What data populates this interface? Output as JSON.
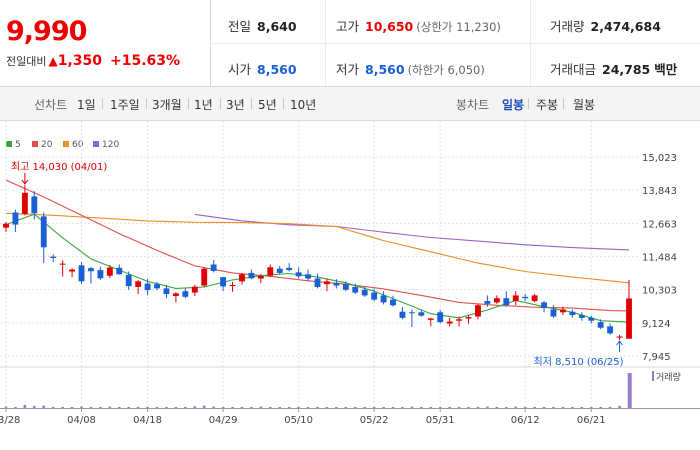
{
  "quote": {
    "price": "9,990",
    "change_label": "전일대비",
    "change_arrow": "▲",
    "change_amount": "1,350",
    "change_pct": "+15.63%",
    "prev_label": "전일",
    "prev_value": "8,640",
    "high_label": "고가",
    "high_value": "10,650",
    "high_limit": "(상한가 11,230)",
    "volume_label": "거래량",
    "volume_value": "2,474,684",
    "open_label": "시가",
    "open_value": "8,560",
    "low_label": "저가",
    "low_value": "8,560",
    "low_limit": "(하한가 6,050)",
    "amount_label": "거래대금",
    "amount_value": "24,785",
    "amount_unit": "백만"
  },
  "toolbar": {
    "line_label": "선차트",
    "periods": [
      "1일",
      "1주일",
      "3개월",
      "1년",
      "3년",
      "5년",
      "10년"
    ],
    "candle_label": "봉차트",
    "candle_periods": [
      "일봉",
      "주봉",
      "월봉"
    ],
    "active_candle": "일봉"
  },
  "colors": {
    "up": "#e00000",
    "down": "#1a5fd6",
    "ma5": "#39a83b",
    "ma20": "#e15050",
    "ma60": "#f08c28",
    "ma120": "#9a60c8",
    "volume": "#9c7ec6"
  },
  "chart_data": {
    "type": "candlestick",
    "x_ticks": [
      "03/28",
      "04/08",
      "04/18",
      "04/29",
      "05/10",
      "05/22",
      "05/31",
      "06/12",
      "06/21"
    ],
    "y_ticks": [
      "15,023",
      "13,843",
      "12,663",
      "11,484",
      "10,303",
      "9,124",
      "7,945"
    ],
    "ylim": [
      7945,
      15023
    ],
    "legend": [
      "5",
      "20",
      "60",
      "120"
    ],
    "volume_legend": "거래량",
    "max_annotation": "최고 14,030 (04/01)",
    "min_annotation": "최저 8,510 (06/25)",
    "ohlc": [
      [
        12510,
        12710,
        12350,
        12650
      ],
      [
        13050,
        13150,
        12360,
        12620
      ],
      [
        13000,
        14030,
        12950,
        13750
      ],
      [
        13620,
        13810,
        12800,
        13020
      ],
      [
        12910,
        13050,
        11250,
        11810
      ],
      [
        11480,
        11560,
        11280,
        11430
      ],
      [
        11200,
        11340,
        10770,
        11230
      ],
      [
        10950,
        11070,
        10750,
        11020
      ],
      [
        11170,
        11280,
        10500,
        10600
      ],
      [
        11070,
        11110,
        10520,
        10960
      ],
      [
        11000,
        11120,
        10650,
        10710
      ],
      [
        10800,
        11180,
        10720,
        11090
      ],
      [
        11080,
        11200,
        10840,
        10850
      ],
      [
        10830,
        10950,
        10300,
        10430
      ],
      [
        10400,
        10650,
        10150,
        10600
      ],
      [
        10520,
        10680,
        10100,
        10290
      ],
      [
        10500,
        10580,
        10280,
        10350
      ],
      [
        10350,
        10470,
        10000,
        10150
      ],
      [
        10080,
        10220,
        9850,
        10170
      ],
      [
        10250,
        10350,
        10000,
        10050
      ],
      [
        10200,
        10480,
        10080,
        10410
      ],
      [
        10450,
        11100,
        10400,
        11050
      ],
      [
        11200,
        11360,
        10920,
        10970
      ],
      [
        10750,
        10760,
        10250,
        10420
      ],
      [
        10440,
        10580,
        10230,
        10470
      ],
      [
        10600,
        10900,
        10480,
        10850
      ],
      [
        10900,
        11020,
        10680,
        10710
      ],
      [
        10700,
        10860,
        10540,
        10790
      ],
      [
        10800,
        11200,
        10750,
        11100
      ],
      [
        11050,
        11150,
        10850,
        10900
      ],
      [
        11080,
        11250,
        10950,
        11000
      ],
      [
        10920,
        11100,
        10700,
        10780
      ],
      [
        10850,
        11020,
        10600,
        10700
      ],
      [
        10700,
        10880,
        10350,
        10400
      ],
      [
        10500,
        10700,
        10250,
        10600
      ],
      [
        10550,
        10680,
        10350,
        10450
      ],
      [
        10500,
        10600,
        10250,
        10300
      ],
      [
        10400,
        10520,
        10150,
        10200
      ],
      [
        10300,
        10420,
        10050,
        10100
      ],
      [
        10200,
        10340,
        9900,
        9950
      ],
      [
        10100,
        10250,
        9780,
        9850
      ],
      [
        9950,
        10080,
        9700,
        9750
      ],
      [
        9520,
        9680,
        9250,
        9300
      ],
      [
        9500,
        9600,
        8980,
        9480
      ],
      [
        9500,
        9600,
        9340,
        9380
      ],
      [
        9230,
        9300,
        9000,
        9280
      ],
      [
        9500,
        9580,
        9100,
        9150
      ],
      [
        9100,
        9300,
        9000,
        9170
      ],
      [
        9200,
        9350,
        9000,
        9250
      ],
      [
        9280,
        9400,
        9100,
        9330
      ],
      [
        9350,
        9800,
        9250,
        9750
      ],
      [
        9900,
        10100,
        9700,
        9800
      ],
      [
        9850,
        10100,
        9800,
        10000
      ],
      [
        10000,
        10250,
        9700,
        9750
      ],
      [
        9900,
        10250,
        9750,
        10100
      ],
      [
        10050,
        10150,
        9900,
        10000
      ],
      [
        9900,
        10150,
        9850,
        10100
      ],
      [
        9850,
        9900,
        9500,
        9650
      ],
      [
        9600,
        9750,
        9300,
        9350
      ],
      [
        9500,
        9700,
        9400,
        9600
      ],
      [
        9520,
        9600,
        9300,
        9400
      ],
      [
        9400,
        9500,
        9200,
        9300
      ],
      [
        9300,
        9380,
        9100,
        9200
      ],
      [
        9150,
        9250,
        8900,
        8950
      ],
      [
        9000,
        9100,
        8700,
        8750
      ],
      [
        8600,
        8700,
        8510,
        8640
      ],
      [
        8560,
        10650,
        8560,
        9990
      ]
    ],
    "ma5": [
      [
        0,
        12620
      ],
      [
        3,
        12990
      ],
      [
        6,
        12150
      ],
      [
        9,
        11400
      ],
      [
        12,
        11000
      ],
      [
        15,
        10600
      ],
      [
        18,
        10350
      ],
      [
        21,
        10400
      ],
      [
        24,
        10650
      ],
      [
        27,
        10800
      ],
      [
        30,
        10880
      ],
      [
        33,
        10750
      ],
      [
        36,
        10550
      ],
      [
        39,
        10250
      ],
      [
        42,
        9850
      ],
      [
        45,
        9450
      ],
      [
        48,
        9300
      ],
      [
        51,
        9580
      ],
      [
        54,
        9920
      ],
      [
        57,
        9700
      ],
      [
        60,
        9500
      ],
      [
        63,
        9200
      ],
      [
        66,
        9150
      ]
    ],
    "ma20": [
      [
        0,
        14200
      ],
      [
        4,
        13600
      ],
      [
        8,
        12950
      ],
      [
        12,
        12300
      ],
      [
        16,
        11700
      ],
      [
        20,
        11150
      ],
      [
        24,
        10900
      ],
      [
        28,
        10780
      ],
      [
        32,
        10620
      ],
      [
        36,
        10500
      ],
      [
        40,
        10330
      ],
      [
        44,
        10100
      ],
      [
        48,
        9850
      ],
      [
        52,
        9750
      ],
      [
        56,
        9680
      ],
      [
        60,
        9650
      ],
      [
        64,
        9560
      ],
      [
        66,
        9550
      ]
    ],
    "ma60": [
      [
        0,
        13020
      ],
      [
        5,
        12950
      ],
      [
        10,
        12850
      ],
      [
        15,
        12750
      ],
      [
        20,
        12700
      ],
      [
        25,
        12690
      ],
      [
        30,
        12650
      ],
      [
        35,
        12550
      ],
      [
        40,
        12050
      ],
      [
        45,
        11650
      ],
      [
        50,
        11250
      ],
      [
        55,
        10950
      ],
      [
        60,
        10750
      ],
      [
        66,
        10550
      ]
    ],
    "ma120": [
      [
        20,
        12980
      ],
      [
        25,
        12750
      ],
      [
        30,
        12610
      ],
      [
        35,
        12550
      ],
      [
        40,
        12350
      ],
      [
        45,
        12160
      ],
      [
        50,
        12030
      ],
      [
        55,
        11900
      ],
      [
        60,
        11800
      ],
      [
        66,
        11720
      ]
    ],
    "volume_rel": [
      0.04,
      0.03,
      0.09,
      0.06,
      0.07,
      0.03,
      0.02,
      0.02,
      0.04,
      0.03,
      0.02,
      0.04,
      0.02,
      0.03,
      0.02,
      0.02,
      0.02,
      0.02,
      0.03,
      0.02,
      0.05,
      0.07,
      0.04,
      0.03,
      0.02,
      0.02,
      0.02,
      0.04,
      0.02,
      0.02,
      0.03,
      0.02,
      0.02,
      0.03,
      0.02,
      0.02,
      0.02,
      0.02,
      0.02,
      0.03,
      0.02,
      0.03,
      0.02,
      0.04,
      0.02,
      0.02,
      0.02,
      0.02,
      0.02,
      0.02,
      0.03,
      0.04,
      0.03,
      0.02,
      0.04,
      0.02,
      0.02,
      0.03,
      0.02,
      0.02,
      0.02,
      0.02,
      0.03,
      0.02,
      0.02,
      0.06,
      1.0
    ]
  }
}
